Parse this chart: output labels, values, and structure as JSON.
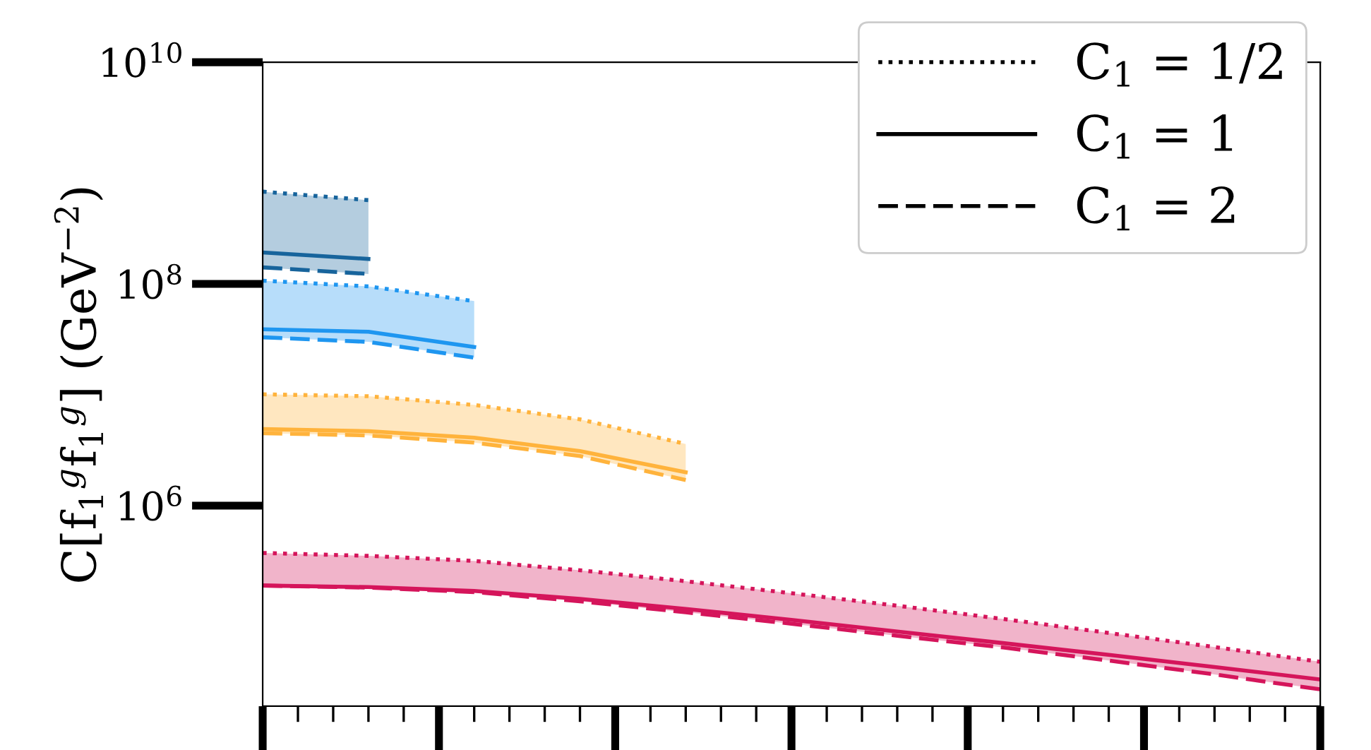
{
  "chart_data": {
    "type": "line",
    "ylabel": "C[f$_{1}$$^{g}$f$_{1}$$^{g}$] (GeV$^{−2}$)",
    "log": "y",
    "categories": [
      null,
      null,
      null,
      null,
      null,
      null,
      null,
      null,
      null,
      null,
      null
    ],
    "ylim": [
      15500,
      10000000000
    ],
    "yticks": [
      {
        "value": 1000000,
        "label": "10$^{6}$"
      },
      {
        "value": 100000000,
        "label": "10$^{8}$"
      },
      {
        "value": 10000000000,
        "label": "10$^{10}$"
      }
    ],
    "tick_labels": "y",
    "grid": false,
    "legend": "top right",
    "marker": "none",
    "series": [
      {
        "name": "C$_{1}$ = 1/2",
        "line_style": "dotted",
        "color": "#000000",
        "values": [
          null,
          null,
          null,
          null,
          null,
          null,
          null,
          null,
          null,
          null,
          null
        ]
      },
      {
        "name": "C$_{1}$ = 1",
        "line_style": "solid",
        "color": "#000000",
        "values": [
          null,
          null,
          null,
          null,
          null,
          null,
          null,
          null,
          null,
          null,
          null
        ]
      },
      {
        "name": "C$_{1}$ = 2",
        "line_style": "dashed",
        "color": "#000000",
        "values": [
          null,
          null,
          null,
          null,
          null,
          null,
          null,
          null,
          null,
          null,
          null
        ]
      },
      {
        "line_style": "dotted",
        "color": "#17649c",
        "values": [
          680000000,
          570000000,
          null,
          null,
          null,
          null,
          null,
          null,
          null,
          null,
          null
        ]
      },
      {
        "line_style": "solid",
        "color": "#17649c",
        "values": [
          192000000,
          168000000,
          null,
          null,
          null,
          null,
          null,
          null,
          null,
          null,
          null
        ],
        "lower": [
          141000000,
          123000000,
          null,
          null,
          null,
          null,
          null,
          null,
          null,
          null,
          null
        ],
        "upper": [
          680000000,
          570000000,
          null,
          null,
          null,
          null,
          null,
          null,
          null,
          null,
          null
        ]
      },
      {
        "line_style": "dashed",
        "color": "#17649c",
        "values": [
          141000000,
          123000000,
          null,
          null,
          null,
          null,
          null,
          null,
          null,
          null,
          null
        ]
      },
      {
        "line_style": "dotted",
        "color": "#1e96f0",
        "values": [
          107000000,
          95000000,
          70000000,
          null,
          null,
          null,
          null,
          null,
          null,
          null,
          null
        ]
      },
      {
        "line_style": "solid",
        "color": "#1e96f0",
        "values": [
          39000000,
          37000000,
          27000000,
          null,
          null,
          null,
          null,
          null,
          null,
          null,
          null
        ],
        "lower": [
          33000000,
          30000000,
          21600000,
          null,
          null,
          null,
          null,
          null,
          null,
          null,
          null
        ],
        "upper": [
          107000000,
          95000000,
          70000000,
          null,
          null,
          null,
          null,
          null,
          null,
          null,
          null
        ]
      },
      {
        "line_style": "dashed",
        "color": "#1e96f0",
        "values": [
          33000000,
          30000000,
          21600000,
          null,
          null,
          null,
          null,
          null,
          null,
          null,
          null
        ]
      },
      {
        "line_style": "dotted",
        "color": "#ffb33c",
        "values": [
          10100000,
          9700000,
          8100000,
          6000000,
          3600000,
          null,
          null,
          null,
          null,
          null,
          null
        ]
      },
      {
        "line_style": "solid",
        "color": "#ffb33c",
        "values": [
          4900000,
          4700000,
          4100000,
          3100000,
          2000000,
          null,
          null,
          null,
          null,
          null,
          null
        ],
        "lower": [
          4500000,
          4300000,
          3700000,
          2800000,
          1700000,
          null,
          null,
          null,
          null,
          null,
          null
        ],
        "upper": [
          10100000,
          9700000,
          8100000,
          6000000,
          3600000,
          null,
          null,
          null,
          null,
          null,
          null
        ]
      },
      {
        "line_style": "dashed",
        "color": "#ffb33c",
        "values": [
          4500000,
          4300000,
          3700000,
          2800000,
          1700000,
          null,
          null,
          null,
          null,
          null,
          null
        ]
      },
      {
        "line_style": "dotted",
        "color": "#d5155b",
        "values": [
          374000,
          352000,
          317000,
          261000,
          208000,
          162000,
          125000,
          95000,
          71000,
          53000,
          39000
        ]
      },
      {
        "line_style": "solid",
        "color": "#d5155b",
        "values": [
          190000,
          184000,
          170000,
          144000,
          117000,
          93000,
          73000,
          57500,
          45000,
          35000,
          27000
        ],
        "lower": [
          190000,
          182000,
          166000,
          137000,
          109000,
          86000,
          67000,
          52500,
          40000,
          30000,
          22000
        ],
        "upper": [
          374000,
          352000,
          317000,
          261000,
          208000,
          162000,
          125000,
          95000,
          71000,
          53000,
          39000
        ]
      },
      {
        "line_style": "dashed",
        "color": "#d5155b",
        "values": [
          190000,
          182000,
          166000,
          137000,
          109000,
          86000,
          67000,
          52500,
          40000,
          30000,
          22000
        ]
      }
    ]
  }
}
